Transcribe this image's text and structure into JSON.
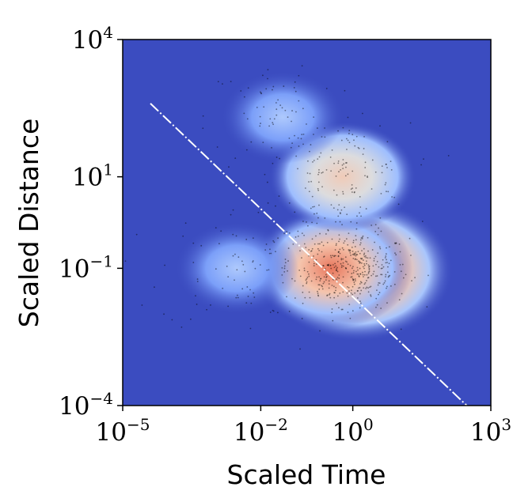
{
  "chart_data": {
    "type": "heatmap",
    "title": "",
    "xlabel": "Scaled Time",
    "ylabel": "Scaled Distance",
    "x_scale": "log",
    "y_scale": "log",
    "xlim": [
      1e-05,
      1000
    ],
    "ylim": [
      0.0001,
      10000
    ],
    "x_ticks": [
      {
        "value": 1e-05,
        "base": "10",
        "exp": "−5"
      },
      {
        "value": 0.01,
        "base": "10",
        "exp": "−2"
      },
      {
        "value": 1,
        "base": "10",
        "exp": "0"
      },
      {
        "value": 1000,
        "base": "10",
        "exp": "3"
      }
    ],
    "y_ticks": [
      {
        "value": 0.0001,
        "base": "10",
        "exp": "−4"
      },
      {
        "value": 0.1,
        "base": "10",
        "exp": "−1"
      },
      {
        "value": 10,
        "base": "10",
        "exp": "1"
      },
      {
        "value": 10000,
        "base": "10",
        "exp": "4"
      }
    ],
    "colormap": "coolwarm",
    "background_color": "#3b4cc0",
    "density_clusters": [
      {
        "x": 1.3,
        "y": 0.09,
        "intensity": 1.0
      },
      {
        "x": 0.35,
        "y": 0.1,
        "intensity": 0.7
      },
      {
        "x": 0.6,
        "y": 10,
        "intensity": 0.55
      },
      {
        "x": 0.03,
        "y": 200,
        "intensity": 0.3
      },
      {
        "x": 0.003,
        "y": 0.1,
        "intensity": 0.3
      }
    ],
    "scatter_color": "#000000",
    "reference_line": {
      "color": "#ffffff",
      "style": "dash-dot",
      "x": [
        4e-05,
        300
      ],
      "y": [
        400,
        0.0001
      ]
    },
    "grid": false,
    "legend": "none"
  }
}
